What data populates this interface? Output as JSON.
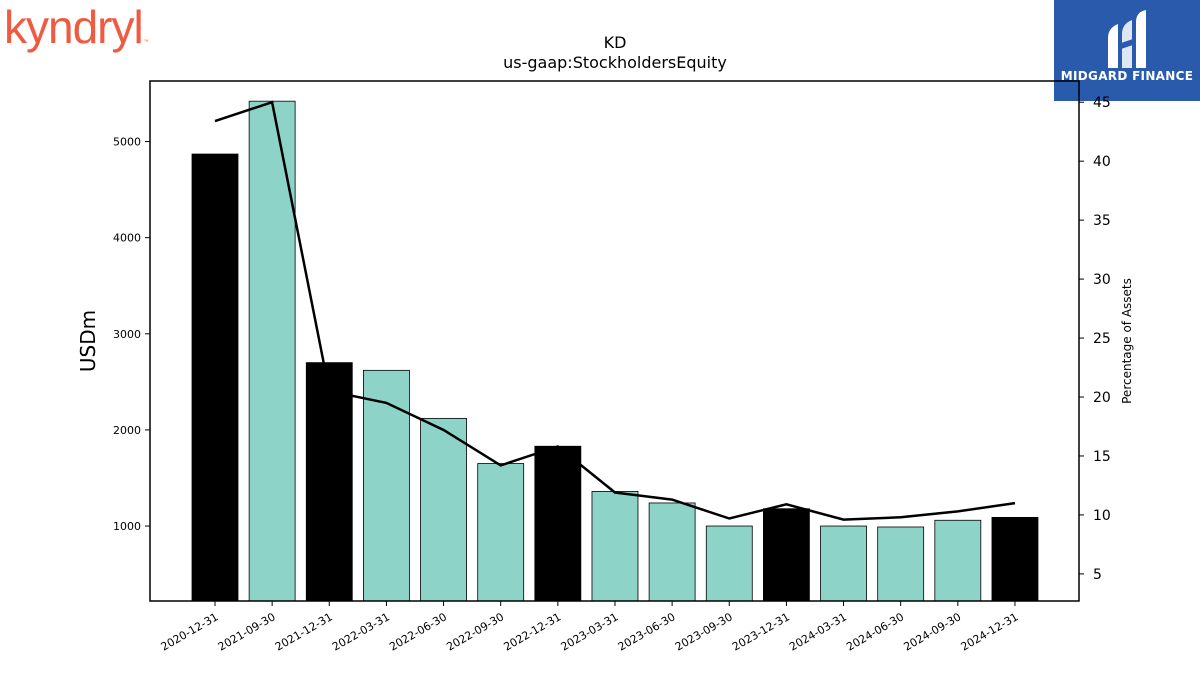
{
  "logos": {
    "left": "kyndryl",
    "right": "MIDGARD FINANCE"
  },
  "chart_data": {
    "type": "bar",
    "title": "KD",
    "subtitle": "us-gaap:StockholdersEquity",
    "ylabel": "USDm",
    "y2label": "Percentage of Assets",
    "categories": [
      "2020-12-31",
      "2021-09-30",
      "2021-12-31",
      "2022-03-31",
      "2022-06-30",
      "2022-09-30",
      "2022-12-31",
      "2023-03-31",
      "2023-06-30",
      "2023-09-30",
      "2023-12-31",
      "2024-03-31",
      "2024-06-30",
      "2024-09-30",
      "2024-12-31"
    ],
    "series": [
      {
        "values": [
          4870,
          5420,
          2700,
          2620,
          2120,
          1650,
          1830,
          1360,
          1240,
          1000,
          1180,
          1000,
          990,
          1060,
          1090
        ]
      },
      {
        "values": [
          43.4,
          45.0,
          20.5,
          19.5,
          17.2,
          14.2,
          15.8,
          11.9,
          11.3,
          9.7,
          10.9,
          9.6,
          9.8,
          10.3,
          11.0
        ]
      }
    ],
    "bar_colors": [
      "#000000",
      "#8dd3c7",
      "#000000",
      "#8dd3c7",
      "#8dd3c7",
      "#8dd3c7",
      "#000000",
      "#8dd3c7",
      "#8dd3c7",
      "#8dd3c7",
      "#000000",
      "#8dd3c7",
      "#8dd3c7",
      "#8dd3c7",
      "#000000"
    ],
    "yticks": [
      1000,
      2000,
      3000,
      4000,
      5000
    ],
    "y2ticks": [
      5,
      10,
      15,
      20,
      25,
      30,
      35,
      40,
      45
    ],
    "ylim": [
      220,
      5630
    ],
    "y2lim": [
      2.7,
      46.8
    ],
    "line_color": "#000000",
    "grid": false
  }
}
